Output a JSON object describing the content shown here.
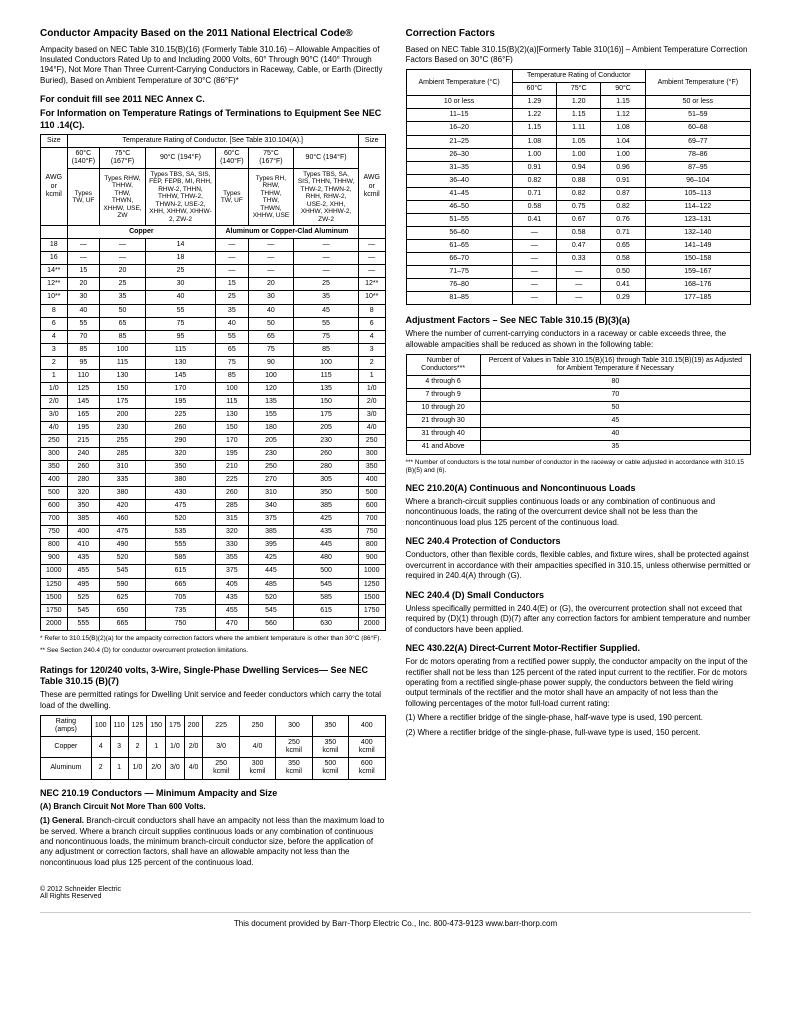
{
  "left": {
    "title": "Conductor Ampacity Based on the 2011 National Electrical Code®",
    "intro": "Ampacity based on NEC Table 310.15(B)(16) (Formerly Table 310.16) – Allowable Ampacities of Insulated Conductors Rated Up to and Including 2000 Volts, 60° Through 90°C (140° Through 194°F), Not More Than Three Current-Carrying Conductors in Raceway, Cable, or Earth (Directly Buried), Based on Ambient Temperature of 30°C (86°F)*",
    "sub1": "For conduit fill see 2011 NEC Annex C.",
    "sub2": "For Information on Temperature Ratings of Terminations to Equipment See NEC 110 .14(C).",
    "ampTable": {
      "headTop": [
        "Size",
        "Temperature Rating of Conductor. [See Table 310.104(A).]",
        "Size"
      ],
      "temps": [
        "60°C (140°F)",
        "75°C (167°F)",
        "90°C (194°F)",
        "60°C (140°F)",
        "75°C (167°F)",
        "90°C (194°F)"
      ],
      "rowLabels": [
        "AWG or kcmil",
        "Types TW, UF",
        "Types RHW, THHW, THW, THWN, XHHW, USE, ZW",
        "Types TBS, SA, SIS, FEP, FEPB, MI, RHH, RHW-2, THHN, THHW, THW-2, THWN-2, USE-2, XHH, XHHW, XHHW-2, ZW-2",
        "Types TW, UF",
        "Types RH, RHW, THHW, THW, THWN, XHHW, USE",
        "Types TBS, SA, SIS, THHN, THHW, THW-2, THWN-2, RHH, RHW-2, USE-2, XHH, XHHW, XHHW-2, ZW-2",
        "AWG or kcmil"
      ],
      "matHead": [
        "Copper",
        "Aluminum or Copper-Clad Aluminum"
      ],
      "rows": [
        [
          "18",
          "—",
          "—",
          "14",
          "—",
          "—",
          "—",
          "—"
        ],
        [
          "16",
          "—",
          "—",
          "18",
          "—",
          "—",
          "—",
          "—"
        ],
        [
          "14**",
          "15",
          "20",
          "25",
          "—",
          "—",
          "—",
          "—"
        ],
        [
          "12**",
          "20",
          "25",
          "30",
          "15",
          "20",
          "25",
          "12**"
        ],
        [
          "10**",
          "30",
          "35",
          "40",
          "25",
          "30",
          "35",
          "10**"
        ],
        [
          "8",
          "40",
          "50",
          "55",
          "35",
          "40",
          "45",
          "8"
        ],
        [
          "6",
          "55",
          "65",
          "75",
          "40",
          "50",
          "55",
          "6"
        ],
        [
          "4",
          "70",
          "85",
          "95",
          "55",
          "65",
          "75",
          "4"
        ],
        [
          "3",
          "85",
          "100",
          "115",
          "65",
          "75",
          "85",
          "3"
        ],
        [
          "2",
          "95",
          "115",
          "130",
          "75",
          "90",
          "100",
          "2"
        ],
        [
          "1",
          "110",
          "130",
          "145",
          "85",
          "100",
          "115",
          "1"
        ],
        [
          "1/0",
          "125",
          "150",
          "170",
          "100",
          "120",
          "135",
          "1/0"
        ],
        [
          "2/0",
          "145",
          "175",
          "195",
          "115",
          "135",
          "150",
          "2/0"
        ],
        [
          "3/0",
          "165",
          "200",
          "225",
          "130",
          "155",
          "175",
          "3/0"
        ],
        [
          "4/0",
          "195",
          "230",
          "260",
          "150",
          "180",
          "205",
          "4/0"
        ],
        [
          "250",
          "215",
          "255",
          "290",
          "170",
          "205",
          "230",
          "250"
        ],
        [
          "300",
          "240",
          "285",
          "320",
          "195",
          "230",
          "260",
          "300"
        ],
        [
          "350",
          "260",
          "310",
          "350",
          "210",
          "250",
          "280",
          "350"
        ],
        [
          "400",
          "280",
          "335",
          "380",
          "225",
          "270",
          "305",
          "400"
        ],
        [
          "500",
          "320",
          "380",
          "430",
          "260",
          "310",
          "350",
          "500"
        ],
        [
          "600",
          "350",
          "420",
          "475",
          "285",
          "340",
          "385",
          "600"
        ],
        [
          "700",
          "385",
          "460",
          "520",
          "315",
          "375",
          "425",
          "700"
        ],
        [
          "750",
          "400",
          "475",
          "535",
          "320",
          "385",
          "435",
          "750"
        ],
        [
          "800",
          "410",
          "490",
          "555",
          "330",
          "395",
          "445",
          "800"
        ],
        [
          "900",
          "435",
          "520",
          "585",
          "355",
          "425",
          "480",
          "900"
        ],
        [
          "1000",
          "455",
          "545",
          "615",
          "375",
          "445",
          "500",
          "1000"
        ],
        [
          "1250",
          "495",
          "590",
          "665",
          "405",
          "485",
          "545",
          "1250"
        ],
        [
          "1500",
          "525",
          "625",
          "705",
          "435",
          "520",
          "585",
          "1500"
        ],
        [
          "1750",
          "545",
          "650",
          "735",
          "455",
          "545",
          "615",
          "1750"
        ],
        [
          "2000",
          "555",
          "665",
          "750",
          "470",
          "560",
          "630",
          "2000"
        ]
      ],
      "note1": "* Refer to 310.15(B)(2)(a) for the ampacity correction factors where the ambient temperature is other than 30°C (86°F).",
      "note2": "** See Section 240.4 (D) for conductor overcurrent protection limitations."
    },
    "ratingsTitle": "Ratings for 120/240 volts, 3-Wire, Single-Phase Dwelling Services— See NEC Table 310.15 (B)(7)",
    "ratingsText": "These are permitted ratings for Dwelling Unit service and feeder conductors which carry the total load of the dwelling.",
    "ratingsTable": {
      "head": [
        "Rating (amps)",
        "100",
        "110",
        "125",
        "150",
        "175",
        "200",
        "225",
        "250",
        "300",
        "350",
        "400"
      ],
      "rows": [
        [
          "Copper",
          "4",
          "3",
          "2",
          "1",
          "1/0",
          "2/0",
          "3/0",
          "4/0",
          "250 kcmil",
          "350 kcmil",
          "400 kcmil"
        ],
        [
          "Aluminum",
          "2",
          "1",
          "1/0",
          "2/0",
          "3/0",
          "4/0",
          "250 kcmil",
          "300 kcmil",
          "350 kcmil",
          "500 kcmil",
          "600 kcmil"
        ]
      ]
    },
    "minAmpTitle": "NEC 210.19 Conductors — Minimum Ampacity and Size",
    "minAmpA": "(A) Branch Circuit Not More Than 600 Volts.",
    "minAmpText": "(1) General. Branch-circuit conductors shall have an ampacity not less than the maximum load to be served. Where a branch circuit supplies continuous loads or any combination of continuous and noncontinuous loads, the minimum branch-circuit conductor size, before the application of any adjustment or correction factors, shall have an allowable ampacity not less than the noncontinuous load plus 125 percent of the continuous load."
  },
  "right": {
    "cfTitle": "Correction Factors",
    "cfText": "Based on NEC Table 310.15(B)(2)(a)[Formerly Table 310(16)] – Ambient Temperature Correction Factors Based on 30°C (86°F)",
    "cfTable": {
      "head1": [
        "Ambient Temperature (°C)",
        "Temperature Rating of Conductor",
        "Ambient Temperature (°F)"
      ],
      "head2": [
        "60°C",
        "75°C",
        "90°C"
      ],
      "rows": [
        [
          "10 or less",
          "1.29",
          "1.20",
          "1.15",
          "50 or less"
        ],
        [
          "11–15",
          "1.22",
          "1.15",
          "1.12",
          "51–59"
        ],
        [
          "16–20",
          "1.15",
          "1.11",
          "1.08",
          "60–68"
        ],
        [
          "21–25",
          "1.08",
          "1.05",
          "1.04",
          "69–77"
        ],
        [
          "26–30",
          "1.00",
          "1.00",
          "1.00",
          "78–86"
        ],
        [
          "31–35",
          "0.91",
          "0.94",
          "0.96",
          "87–95"
        ],
        [
          "36–40",
          "0.82",
          "0.88",
          "0.91",
          "96–104"
        ],
        [
          "41–45",
          "0.71",
          "0.82",
          "0.87",
          "105–113"
        ],
        [
          "46–50",
          "0.58",
          "0.75",
          "0.82",
          "114–122"
        ],
        [
          "51–55",
          "0.41",
          "0.67",
          "0.76",
          "123–131"
        ],
        [
          "56–60",
          "—",
          "0.58",
          "0.71",
          "132–140"
        ],
        [
          "61–65",
          "—",
          "0.47",
          "0.65",
          "141–149"
        ],
        [
          "66–70",
          "—",
          "0.33",
          "0.58",
          "150–158"
        ],
        [
          "71–75",
          "—",
          "—",
          "0.50",
          "159–167"
        ],
        [
          "76–80",
          "—",
          "—",
          "0.41",
          "168–176"
        ],
        [
          "81–85",
          "—",
          "—",
          "0.29",
          "177–185"
        ]
      ]
    },
    "adjTitle": "Adjustment Factors – See NEC Table 310.15 (B)(3)(a)",
    "adjText": "Where the number of current-carrying conductors in a raceway or cable exceeds three, the allowable ampacities shall be reduced as shown in the following table:",
    "adjTable": {
      "head": [
        "Number of Conductors***",
        "Percent of Values in Table 310.15(B)(16) through Table 310.15(B)(19) as Adjusted for Ambient Temperature if Necessary"
      ],
      "rows": [
        [
          "4 through 6",
          "80"
        ],
        [
          "7 through 9",
          "70"
        ],
        [
          "10 through 20",
          "50"
        ],
        [
          "21 through 30",
          "45"
        ],
        [
          "31 through 40",
          "40"
        ],
        [
          "41 and Above",
          "35"
        ]
      ],
      "note": "*** Number of conductors is the total number of conductor in the raceway or cable adjusted in accordance with 310.15 (B)(5) and (6)."
    },
    "loadsTitle": "NEC 210.20(A) Continuous and Noncontinuous Loads",
    "loadsText": "Where a branch-circuit supplies continuous loads or any combination of continuous and noncontinuous loads, the rating of the overcurrent device shall not be less than the noncontinuous load plus 125 percent of the continuous load.",
    "protTitle": "NEC 240.4 Protection of Conductors",
    "protText": "Conductors, other than flexible cords, flexible cables, and fixture wires, shall be protected against overcurrent in accordance with their ampacities specified in 310.15, unless otherwise permitted or required in 240.4(A) through (G).",
    "smallTitle": "NEC 240.4 (D) Small Conductors",
    "smallText": "Unless specifically permitted in 240.4(E) or (G), the overcurrent protection shall not exceed that required by (D)(1) through (D)(7) after any correction factors for ambient temperature and number of conductors have been applied.",
    "dcTitle": "NEC 430.22(A) Direct-Current Motor-Rectifier Supplied.",
    "dcText1": "For dc motors operating from a rectified power supply, the conductor ampacity on the input of the rectifier shall not be less than 125 percent of the rated input current to the rectifier. For dc motors operating from a rectified single-phase power supply, the conductors between the field wiring output terminals of the rectifier and the motor shall have an ampacity of not less than the following percentages of the motor full-load current rating:",
    "dcText2": "(1) Where a rectifier bridge of the single-phase, half-wave type is used, 190 percent.",
    "dcText3": "(2) Where a rectifier bridge of the single-phase, full-wave type is used, 150 percent."
  },
  "footer": {
    "copyright": "© 2012 Schneider Electric",
    "rights": "All Rights Reserved",
    "bar": "This document provided by Barr-Thorp Electric Co., Inc.   800-473-9123   www.barr-thorp.com"
  }
}
